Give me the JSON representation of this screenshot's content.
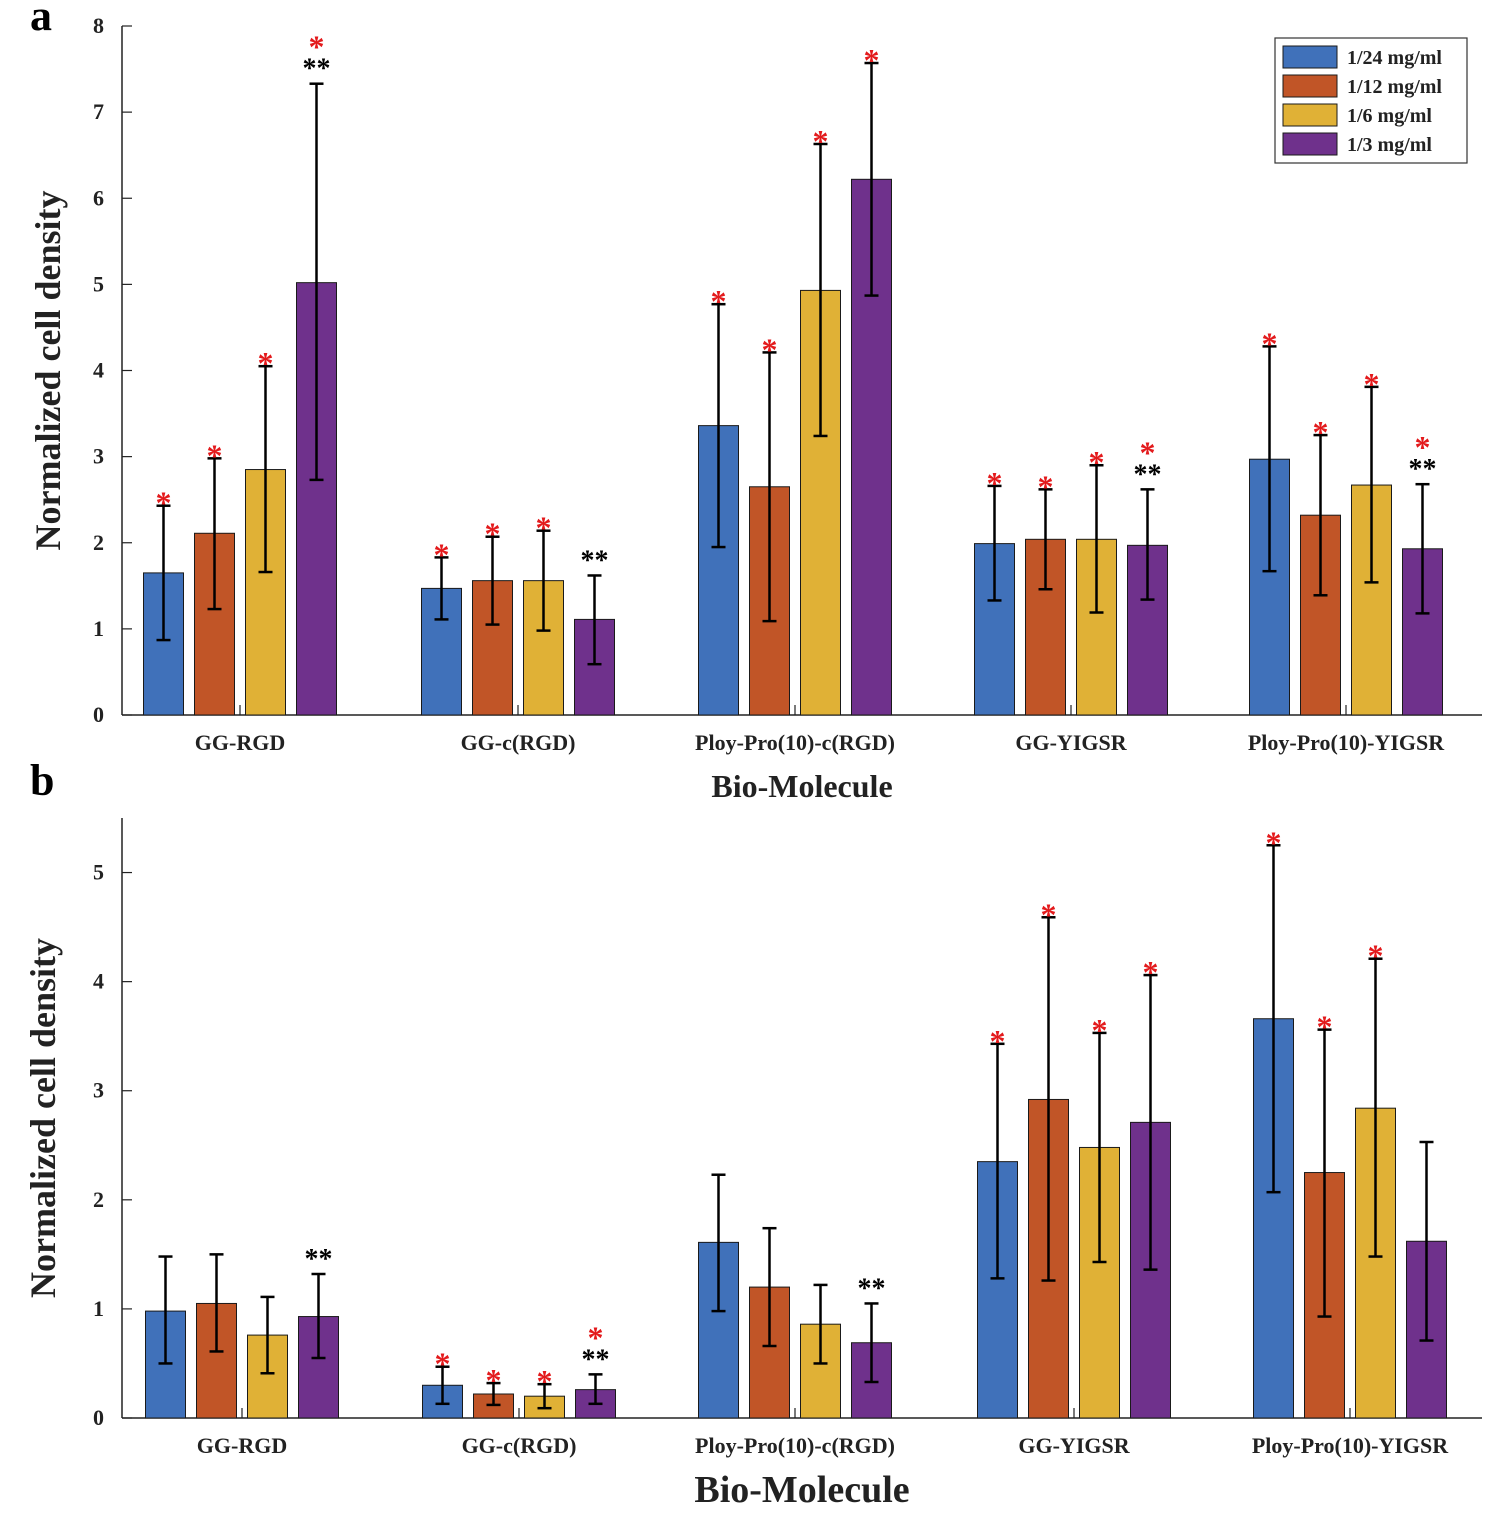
{
  "chart_data": [
    {
      "panel": "a",
      "type": "bar",
      "xlabel": "Bio-Molecule",
      "ylabel": "Normalized cell density",
      "ylim": [
        0,
        8
      ],
      "yticks": [
        0,
        1,
        2,
        3,
        4,
        5,
        6,
        7,
        8
      ],
      "categories": [
        "GG-RGD",
        "GG-c(RGD)",
        "Ploy-Pro(10)-c(RGD)",
        "GG-YIGSR",
        "Ploy-Pro(10)-YIGSR"
      ],
      "legend": [
        "1/24 mg/ml",
        "1/12 mg/ml",
        "1/6 mg/ml",
        "1/3 mg/ml"
      ],
      "series": [
        {
          "name": "1/24 mg/ml",
          "color": "#4071BA",
          "values": [
            1.65,
            1.47,
            3.36,
            1.99,
            2.97
          ],
          "err_low": [
            0.87,
            1.11,
            1.95,
            1.33,
            1.67
          ],
          "err_high": [
            2.43,
            1.83,
            4.77,
            2.66,
            4.28
          ],
          "red_star": [
            "*",
            "*",
            "*",
            "*",
            "*"
          ],
          "black_star": [
            "",
            "",
            "",
            "",
            ""
          ]
        },
        {
          "name": "1/12 mg/ml",
          "color": "#C15527",
          "values": [
            2.11,
            1.56,
            2.65,
            2.04,
            2.32
          ],
          "err_low": [
            1.23,
            1.05,
            1.09,
            1.46,
            1.39
          ],
          "err_high": [
            2.98,
            2.07,
            4.21,
            2.62,
            3.25
          ],
          "red_star": [
            "*",
            "*",
            "*",
            "*",
            "*"
          ],
          "black_star": [
            "",
            "",
            "",
            "",
            ""
          ]
        },
        {
          "name": "1/6 mg/ml",
          "color": "#E0B136",
          "values": [
            2.85,
            1.56,
            4.93,
            2.04,
            2.67
          ],
          "err_low": [
            1.66,
            0.98,
            3.24,
            1.19,
            1.54
          ],
          "err_high": [
            4.05,
            2.14,
            6.63,
            2.9,
            3.81
          ],
          "red_star": [
            "*",
            "*",
            "*",
            "*",
            "*"
          ],
          "black_star": [
            "",
            "",
            "",
            "",
            ""
          ]
        },
        {
          "name": "1/3 mg/ml",
          "color": "#6F318C",
          "values": [
            5.02,
            1.11,
            6.22,
            1.97,
            1.93
          ],
          "err_low": [
            2.73,
            0.59,
            4.87,
            1.34,
            1.18
          ],
          "err_high": [
            7.33,
            1.62,
            7.57,
            2.62,
            2.68
          ],
          "red_star": [
            "*",
            "",
            "*",
            "*",
            "*"
          ],
          "black_star": [
            "**",
            "**",
            "",
            "**",
            "**"
          ]
        }
      ]
    },
    {
      "panel": "b",
      "type": "bar",
      "xlabel": "Bio-Molecule",
      "ylabel": "Normalized cell density",
      "ylim": [
        0,
        5.5
      ],
      "yticks": [
        0,
        1,
        2,
        3,
        4,
        5
      ],
      "categories": [
        "GG-RGD",
        "GG-c(RGD)",
        "Ploy-Pro(10)-c(RGD)",
        "GG-YIGSR",
        "Ploy-Pro(10)-YIGSR"
      ],
      "series": [
        {
          "name": "1/24 mg/ml",
          "color": "#4071BA",
          "values": [
            0.98,
            0.3,
            1.61,
            2.35,
            3.66
          ],
          "err_low": [
            0.5,
            0.13,
            0.98,
            1.28,
            2.07
          ],
          "err_high": [
            1.48,
            0.47,
            2.23,
            3.43,
            5.25
          ],
          "red_star": [
            "",
            "*",
            "",
            "*",
            "*"
          ],
          "black_star": [
            "",
            "",
            "",
            "",
            ""
          ]
        },
        {
          "name": "1/12 mg/ml",
          "color": "#C15527",
          "values": [
            1.05,
            0.22,
            1.2,
            2.92,
            2.25
          ],
          "err_low": [
            0.61,
            0.12,
            0.66,
            1.26,
            0.93
          ],
          "err_high": [
            1.5,
            0.32,
            1.74,
            4.59,
            3.56
          ],
          "red_star": [
            "",
            "*",
            "",
            "*",
            "*"
          ],
          "black_star": [
            "",
            "",
            "",
            "",
            ""
          ]
        },
        {
          "name": "1/6 mg/ml",
          "color": "#E0B136",
          "values": [
            0.76,
            0.2,
            0.86,
            2.48,
            2.84
          ],
          "err_low": [
            0.41,
            0.09,
            0.5,
            1.43,
            1.48
          ],
          "err_high": [
            1.11,
            0.31,
            1.22,
            3.53,
            4.21
          ],
          "red_star": [
            "",
            "*",
            "",
            "*",
            "*"
          ],
          "black_star": [
            "",
            "",
            "",
            "",
            ""
          ]
        },
        {
          "name": "1/3 mg/ml",
          "color": "#6F318C",
          "values": [
            0.93,
            0.26,
            0.69,
            2.71,
            1.62
          ],
          "err_low": [
            0.55,
            0.13,
            0.33,
            1.36,
            0.71
          ],
          "err_high": [
            1.32,
            0.4,
            1.05,
            4.06,
            2.53
          ],
          "red_star": [
            "",
            "*",
            "",
            "*",
            ""
          ],
          "black_star": [
            "**",
            "**",
            "**",
            "",
            ""
          ]
        }
      ]
    }
  ]
}
